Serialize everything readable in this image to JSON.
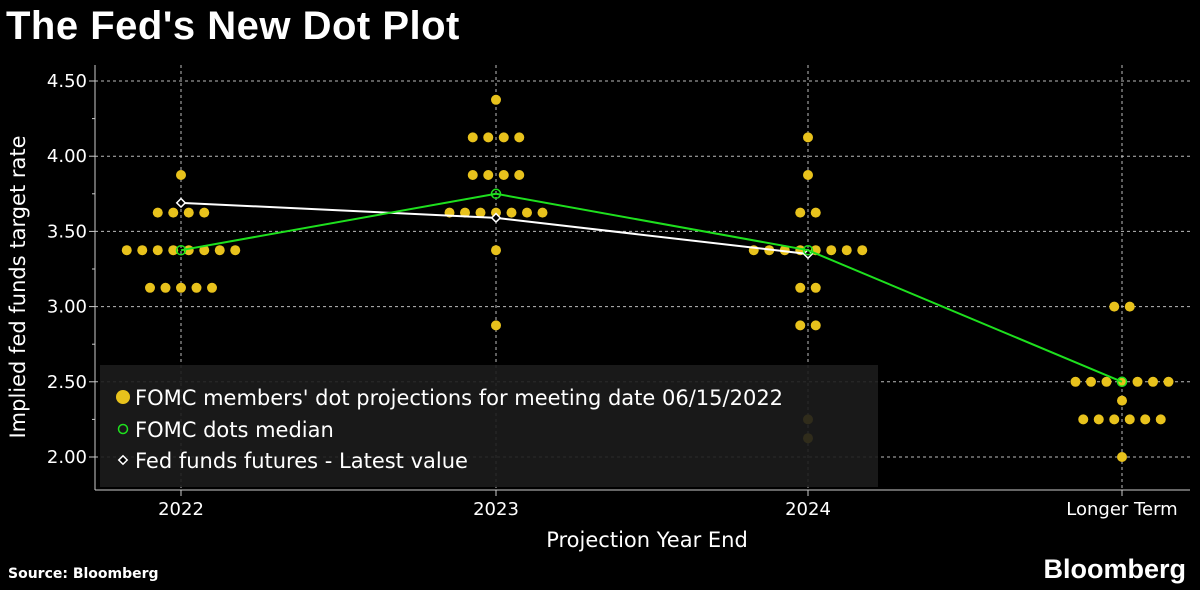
{
  "title": "The Fed's New Dot Plot",
  "source": "Source: Bloomberg",
  "brand": "Bloomberg",
  "colors": {
    "dots": "#e8c21c",
    "median": "#1ee01e",
    "futures": "#ffffff",
    "grid": "#bbbbbb",
    "legend_bg": "#1c1c1c"
  },
  "chart_data": {
    "type": "scatter",
    "xlabel": "Projection Year End",
    "ylabel": "Implied fed funds target rate",
    "categories": [
      "2022",
      "2023",
      "2024",
      "Longer Term"
    ],
    "yticks": [
      "2.00",
      "2.50",
      "3.00",
      "3.50",
      "4.00",
      "4.50"
    ],
    "ylim": [
      1.85,
      4.6
    ],
    "grid": true,
    "legend_placement": "bottom-left",
    "series": [
      {
        "name": "FOMC members' dot projections for meeting date 06/15/2022",
        "type": "dots",
        "values": [
          [
            {
              "rate": 3.875,
              "count": 1
            },
            {
              "rate": 3.625,
              "count": 4
            },
            {
              "rate": 3.375,
              "count": 8
            },
            {
              "rate": 3.125,
              "count": 5
            }
          ],
          [
            {
              "rate": 4.375,
              "count": 1
            },
            {
              "rate": 4.125,
              "count": 4
            },
            {
              "rate": 3.875,
              "count": 4
            },
            {
              "rate": 3.625,
              "count": 7
            },
            {
              "rate": 3.375,
              "count": 1
            },
            {
              "rate": 2.875,
              "count": 1
            }
          ],
          [
            {
              "rate": 4.125,
              "count": 1
            },
            {
              "rate": 3.875,
              "count": 1
            },
            {
              "rate": 3.625,
              "count": 2
            },
            {
              "rate": 3.375,
              "count": 8
            },
            {
              "rate": 3.125,
              "count": 2
            },
            {
              "rate": 2.875,
              "count": 2
            },
            {
              "rate": 2.25,
              "count": 1
            },
            {
              "rate": 2.125,
              "count": 1
            }
          ],
          [
            {
              "rate": 3.0,
              "count": 2
            },
            {
              "rate": 2.5,
              "count": 7
            },
            {
              "rate": 2.375,
              "count": 1
            },
            {
              "rate": 2.25,
              "count": 6
            },
            {
              "rate": 2.0,
              "count": 1
            }
          ]
        ]
      },
      {
        "name": "FOMC dots median",
        "type": "line",
        "values": [
          3.375,
          3.75,
          3.375,
          2.5
        ]
      },
      {
        "name": "Fed funds futures - Latest value",
        "type": "line",
        "values": [
          3.69,
          3.59,
          3.35,
          null
        ]
      }
    ]
  }
}
